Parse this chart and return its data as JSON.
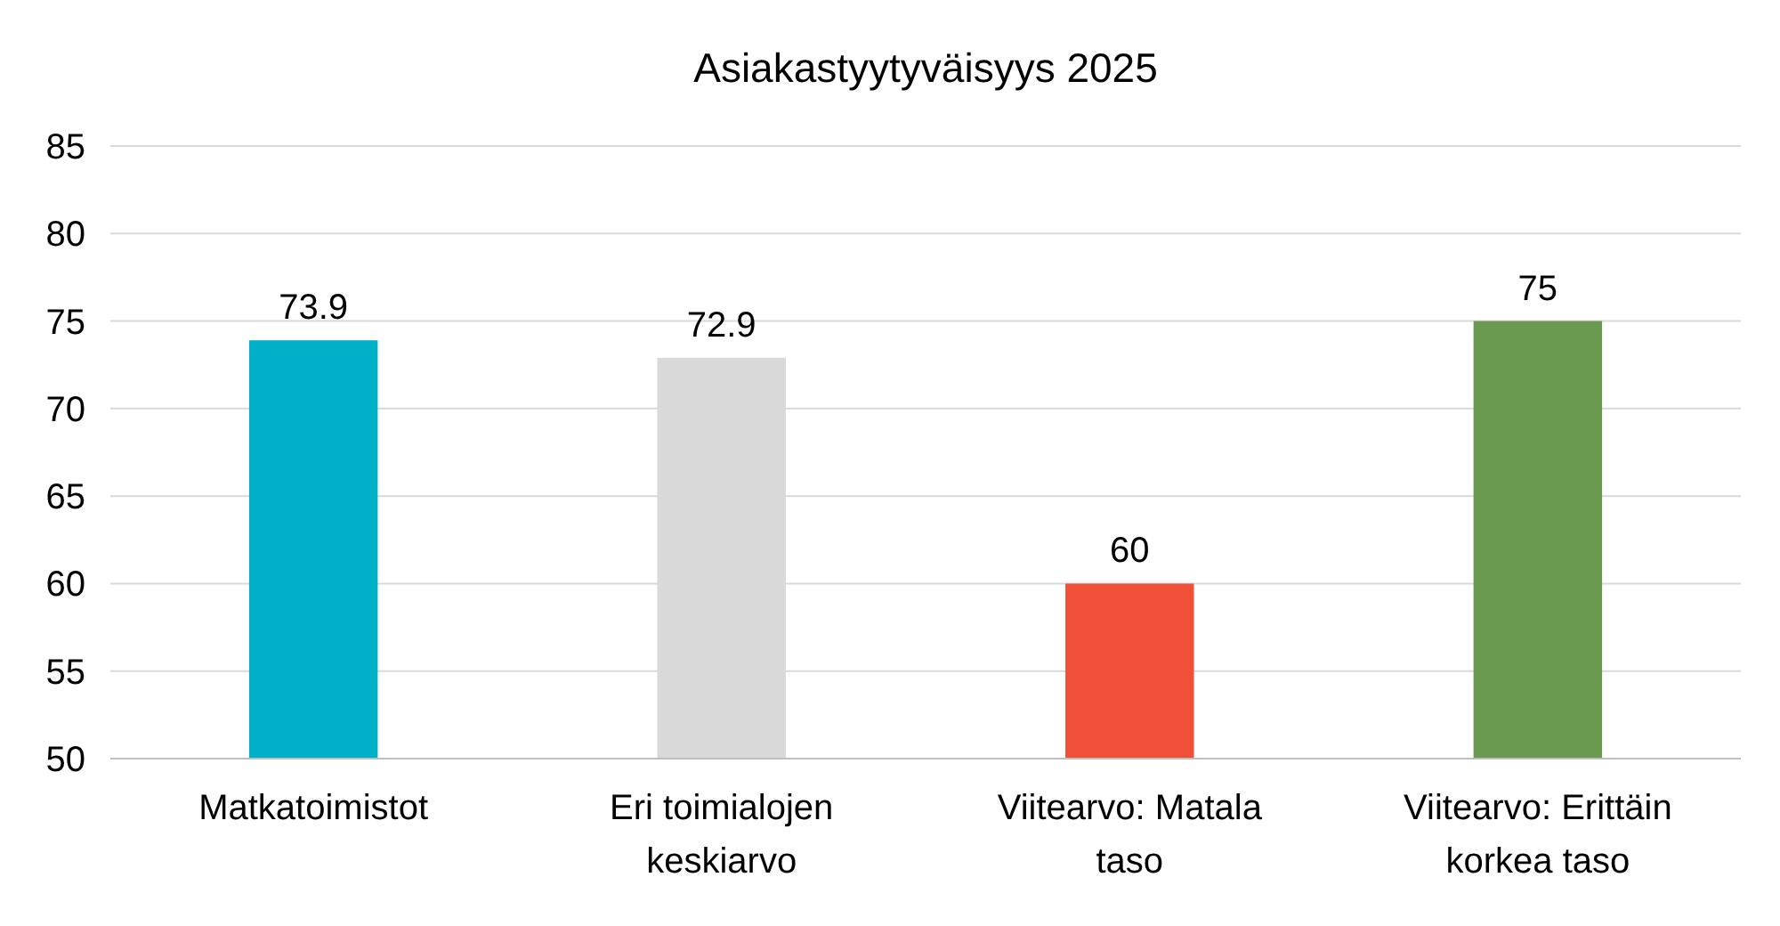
{
  "chart_data": {
    "type": "bar",
    "title": "Asiakastyytyväisyys 2025",
    "categories": [
      "Matkatoimistot",
      "Eri toimialojen keskiarvo",
      "Viitearvo: Matala taso",
      "Viitearvo: Erittäin korkea taso"
    ],
    "values": [
      73.9,
      72.9,
      60,
      75
    ],
    "colors": [
      "#00b0c8",
      "#d9d9d9",
      "#f05038",
      "#6a9a50"
    ],
    "ylim": [
      50,
      85
    ],
    "yticks": [
      50,
      55,
      60,
      65,
      70,
      75,
      80,
      85
    ],
    "grid": "y",
    "data_labels": true
  }
}
